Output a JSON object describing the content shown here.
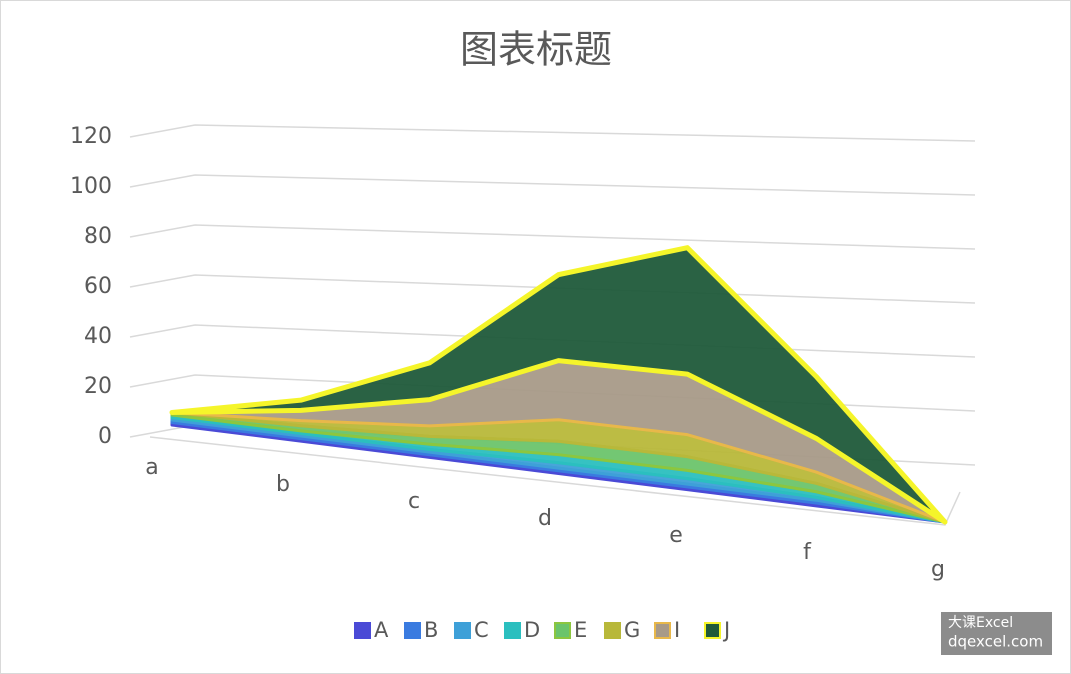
{
  "chart_data": {
    "type": "area3d",
    "title": "图表标题",
    "categories": [
      "a",
      "b",
      "c",
      "d",
      "e",
      "f",
      "g"
    ],
    "series": [
      {
        "name": "A",
        "color": "#4a4ad6",
        "values": [
          1,
          1,
          1,
          1,
          1,
          1,
          0
        ]
      },
      {
        "name": "B",
        "color": "#3a7be0",
        "values": [
          1,
          1,
          1,
          1,
          1,
          1,
          0
        ]
      },
      {
        "name": "C",
        "color": "#3ea0d8",
        "values": [
          1,
          1,
          1,
          2,
          2,
          1,
          0
        ]
      },
      {
        "name": "D",
        "color": "#2bbfbf",
        "values": [
          1,
          1,
          2,
          3,
          3,
          2,
          0
        ]
      },
      {
        "name": "E",
        "color": "#6bc46b",
        "values": [
          1,
          2,
          3,
          5,
          5,
          3,
          0
        ]
      },
      {
        "name": "G",
        "color": "#b8b83a",
        "values": [
          0,
          2,
          4,
          8,
          8,
          4,
          0
        ]
      },
      {
        "name": "I",
        "color": "#a89a88",
        "values": [
          0,
          4,
          10,
          22,
          22,
          12,
          0
        ]
      },
      {
        "name": "J",
        "color": "#1f5a3a",
        "values": [
          0,
          4,
          14,
          32,
          46,
          22,
          0
        ]
      }
    ],
    "edge_colors": [
      "#4a4ad6",
      "#3a7be0",
      "#3ea0d8",
      "#2bbfbf",
      "#8cc63f",
      "#b8b83a",
      "#e8b84a",
      "#f5f52a"
    ],
    "ylim": [
      0,
      120
    ],
    "yticks": [
      0,
      20,
      40,
      60,
      80,
      100,
      120
    ],
    "grid": true,
    "legend": "bottom",
    "watermark": [
      "大课Excel",
      "dqexcel.com"
    ]
  }
}
